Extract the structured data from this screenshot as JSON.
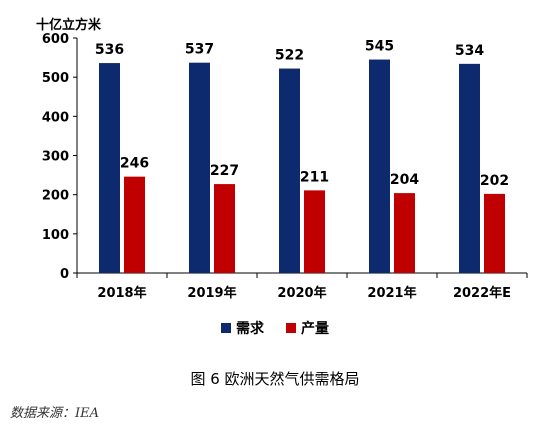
{
  "chart_data": {
    "type": "bar",
    "unit_label": "十亿立方米",
    "categories": [
      "2018年",
      "2019年",
      "2020年",
      "2021年",
      "2022年E"
    ],
    "series": [
      {
        "name": "需求",
        "color": "#0E2A6E",
        "values": [
          536,
          537,
          522,
          545,
          534
        ]
      },
      {
        "name": "产量",
        "color": "#C00000",
        "values": [
          246,
          227,
          211,
          204,
          202
        ]
      }
    ],
    "ylim": [
      0,
      600
    ],
    "yticks": [
      0,
      100,
      200,
      300,
      400,
      500,
      600
    ],
    "grid": false,
    "legend_position": "bottom"
  },
  "caption": "图 6  欧洲天然气供需格局",
  "source": "数据来源：IEA"
}
